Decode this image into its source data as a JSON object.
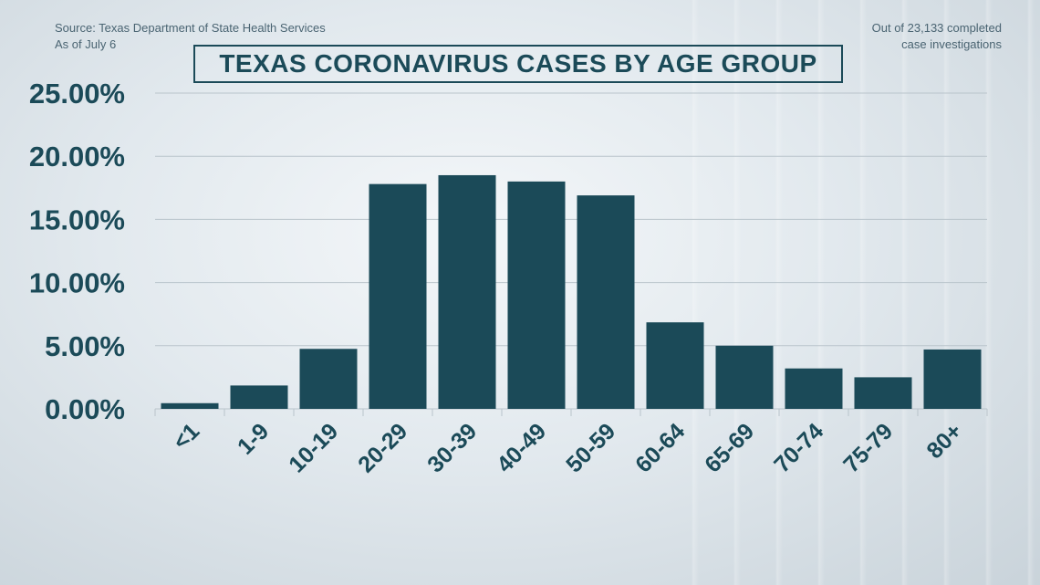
{
  "source_line": "Source: Texas Department of State Health Services",
  "date_line": "As of July 6",
  "note_line1": "Out of 23,133 completed",
  "note_line2": "case investigations",
  "chart_data": {
    "type": "bar",
    "title": "TEXAS CORONAVIRUS CASES BY AGE GROUP",
    "xlabel": "",
    "ylabel": "",
    "categories": [
      "<1",
      "1-9",
      "10-19",
      "20-29",
      "30-39",
      "40-49",
      "50-59",
      "60-64",
      "65-69",
      "70-74",
      "75-79",
      "80+"
    ],
    "values": [
      0.45,
      1.85,
      4.75,
      17.8,
      18.5,
      18.0,
      16.9,
      6.85,
      5.0,
      3.2,
      2.5,
      4.7
    ],
    "ylim": [
      0,
      25
    ],
    "yticks": [
      0,
      5,
      10,
      15,
      20,
      25
    ],
    "ytick_labels": [
      "0.00%",
      "5.00%",
      "10.00%",
      "15.00%",
      "20.00%",
      "25.00%"
    ],
    "grid": true,
    "colors": {
      "bar": "#1b4a58",
      "grid": "#b9c4cb",
      "text": "#1b4a58"
    }
  }
}
